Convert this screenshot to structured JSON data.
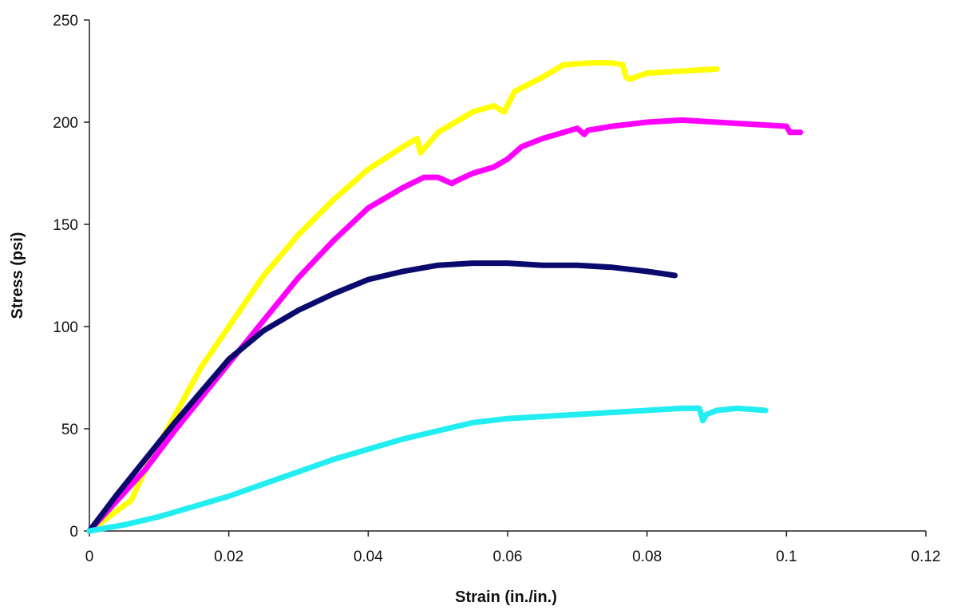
{
  "chart_data": {
    "type": "line",
    "title": "",
    "xlabel": "Strain (in./in.)",
    "ylabel": "Stress (psi)",
    "xlim": [
      0,
      0.12
    ],
    "ylim": [
      0,
      250
    ],
    "xticks": [
      0,
      0.02,
      0.04,
      0.06,
      0.08,
      0.1,
      0.12
    ],
    "xtick_labels": [
      "0",
      "0.02",
      "0.04",
      "0.06",
      "0.08",
      "0.1",
      "0.12"
    ],
    "yticks": [
      0,
      50,
      100,
      150,
      200,
      250
    ],
    "ytick_labels": [
      "0",
      "50",
      "100",
      "150",
      "200",
      "250"
    ],
    "grid": false,
    "legend": "none",
    "series": [
      {
        "color": "#ffff00",
        "x": [
          0,
          0.004,
          0.006,
          0.008,
          0.012,
          0.016,
          0.02,
          0.025,
          0.03,
          0.035,
          0.04,
          0.045,
          0.047,
          0.0475,
          0.05,
          0.055,
          0.058,
          0.0595,
          0.061,
          0.065,
          0.068,
          0.072,
          0.075,
          0.0765,
          0.077,
          0.0775,
          0.08,
          0.085,
          0.09
        ],
        "y": [
          0,
          10,
          15,
          30,
          55,
          80,
          100,
          125,
          145,
          162,
          177,
          188,
          192,
          185,
          195,
          205,
          208,
          205,
          215,
          222,
          228,
          229,
          229,
          228,
          222,
          221,
          224,
          225,
          226
        ]
      },
      {
        "color": "#ff00ff",
        "x": [
          0,
          0.004,
          0.008,
          0.012,
          0.016,
          0.02,
          0.025,
          0.03,
          0.035,
          0.04,
          0.045,
          0.048,
          0.05,
          0.052,
          0.0525,
          0.055,
          0.058,
          0.06,
          0.062,
          0.065,
          0.07,
          0.071,
          0.0715,
          0.075,
          0.08,
          0.085,
          0.09,
          0.095,
          0.1,
          0.1005,
          0.102
        ],
        "y": [
          0,
          15,
          30,
          48,
          65,
          82,
          103,
          124,
          142,
          158,
          168,
          173,
          173,
          170,
          171,
          175,
          178,
          182,
          188,
          192,
          197,
          194,
          196,
          198,
          200,
          201,
          200,
          199,
          198,
          195,
          195
        ]
      },
      {
        "color": "#0a0a6e",
        "x": [
          0,
          0.004,
          0.008,
          0.012,
          0.016,
          0.02,
          0.025,
          0.03,
          0.035,
          0.04,
          0.045,
          0.05,
          0.055,
          0.06,
          0.065,
          0.07,
          0.075,
          0.08,
          0.084
        ],
        "y": [
          0,
          18,
          35,
          52,
          68,
          84,
          98,
          108,
          116,
          123,
          127,
          130,
          131,
          131,
          130,
          130,
          129,
          127,
          125
        ]
      },
      {
        "color": "#22eef2",
        "x": [
          0,
          0.005,
          0.01,
          0.015,
          0.02,
          0.025,
          0.03,
          0.035,
          0.04,
          0.045,
          0.05,
          0.055,
          0.06,
          0.065,
          0.07,
          0.075,
          0.08,
          0.085,
          0.0875,
          0.088,
          0.0885,
          0.09,
          0.093,
          0.097
        ],
        "y": [
          0,
          3,
          7,
          12,
          17,
          23,
          29,
          35,
          40,
          45,
          49,
          53,
          55,
          56,
          57,
          58,
          59,
          60,
          60,
          54,
          57,
          59,
          60,
          59
        ]
      }
    ]
  }
}
